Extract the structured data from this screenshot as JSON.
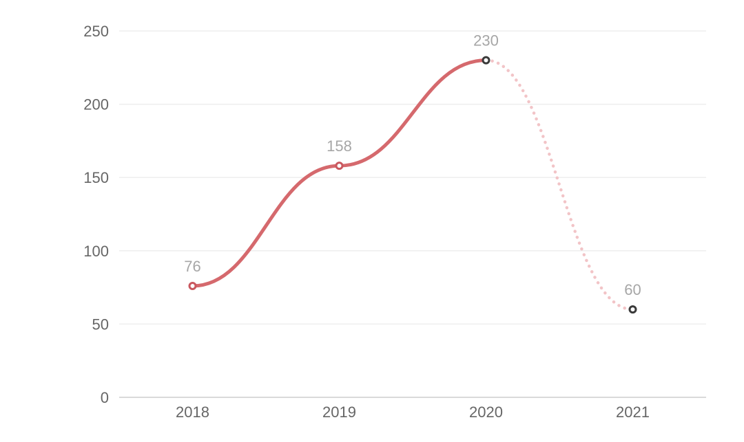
{
  "chart_data": {
    "type": "line",
    "title": "",
    "categories": [
      "2018",
      "2019",
      "2020",
      "2021"
    ],
    "values": [
      76,
      158,
      230,
      60
    ],
    "data_labels": [
      "76",
      "158",
      "230",
      "60"
    ],
    "ylim": [
      0,
      250
    ],
    "yticks": [
      0,
      50,
      100,
      150,
      200,
      250
    ],
    "grid": true,
    "legend_position": "none",
    "smooth": true,
    "line": {
      "solid_segment": {
        "from": 0,
        "to": 2,
        "color": "#d5696d",
        "width": 5
      },
      "dashed_segment": {
        "from": 2,
        "to": 3,
        "color": "#f2c4c7",
        "width": 4.5,
        "style": "dotted"
      }
    },
    "markers": [
      {
        "category": "2018",
        "ring_color": "#c9585f"
      },
      {
        "category": "2019",
        "ring_color": "#c9585f"
      },
      {
        "category": "2020",
        "ring_color": "#3a3a3a"
      },
      {
        "category": "2021",
        "ring_color": "#3a3a3a"
      }
    ],
    "colors": {
      "axis_label": "#666666",
      "data_label": "#a6a6a6",
      "gridline": "#eeeeee",
      "axis_line": "#d9d9d9",
      "background": "#ffffff",
      "marker_fill": "#ffffff"
    }
  }
}
